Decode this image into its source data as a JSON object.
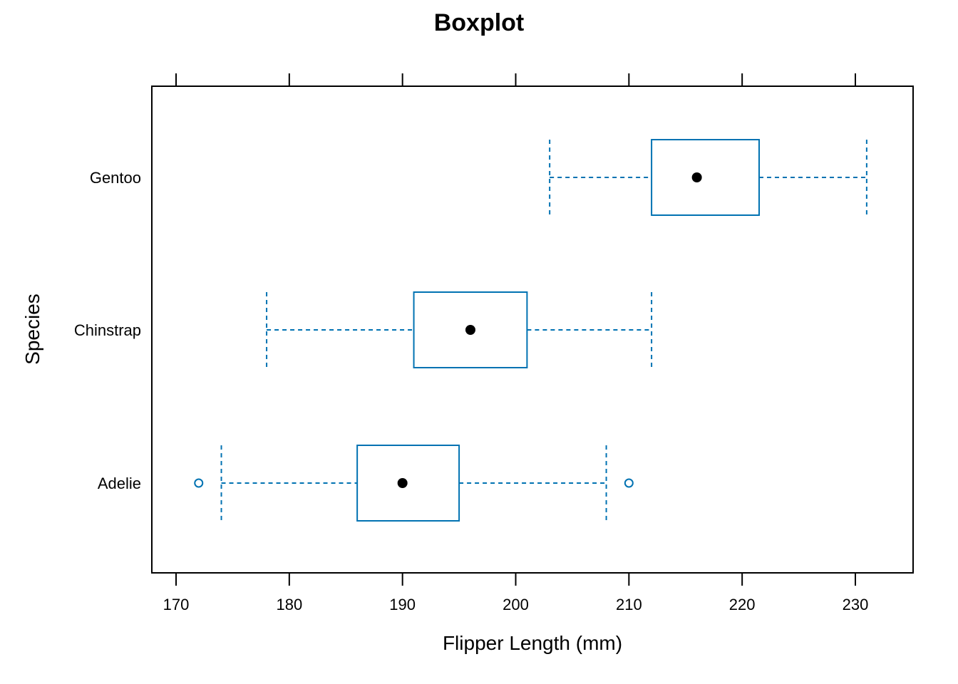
{
  "chart_data": {
    "type": "boxplot",
    "orientation": "horizontal",
    "title": "Boxplot",
    "xlabel": "Flipper Length (mm)",
    "ylabel": "Species",
    "xlim": [
      168,
      235
    ],
    "xticks": [
      170,
      180,
      190,
      200,
      210,
      220,
      230
    ],
    "categories": [
      "Adelie",
      "Chinstrap",
      "Gentoo"
    ],
    "series": [
      {
        "category": "Adelie",
        "whisker_low": 174,
        "q1": 186,
        "median": 190,
        "q3": 195,
        "whisker_high": 208,
        "outliers": [
          172,
          210
        ]
      },
      {
        "category": "Chinstrap",
        "whisker_low": 178,
        "q1": 191,
        "median": 196,
        "q3": 201,
        "whisker_high": 212,
        "outliers": []
      },
      {
        "category": "Gentoo",
        "whisker_low": 203,
        "q1": 212,
        "median": 216,
        "q3": 221.5,
        "whisker_high": 231,
        "outliers": []
      }
    ],
    "grid": false,
    "colors": {
      "box": "#0072B2",
      "median_dot": "#000000",
      "frame": "#000000"
    }
  }
}
